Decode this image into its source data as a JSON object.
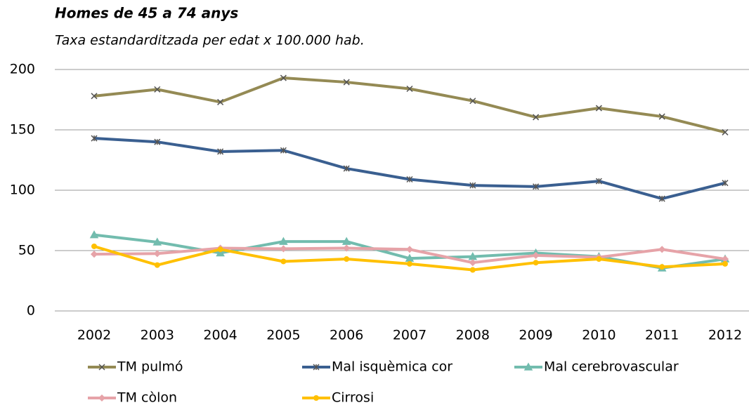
{
  "chart_data": {
    "type": "line",
    "title": "Homes de 45 a 74 anys",
    "subtitle": "Taxa estandarditzada per edat x 100.000 hab.",
    "categories": [
      "2002",
      "2003",
      "2004",
      "2005",
      "2006",
      "2007",
      "2008",
      "2009",
      "2010",
      "2011",
      "2012"
    ],
    "series": [
      {
        "name": "TM pulmó",
        "color": "#948a54",
        "marker": "x",
        "values": [
          178,
          183.5,
          173,
          193,
          189.5,
          184,
          174,
          160.5,
          168,
          161,
          148
        ]
      },
      {
        "name": "Mal isquèmica cor",
        "color": "#3a5f90",
        "marker": "star",
        "values": [
          143,
          140,
          132,
          133,
          118,
          109,
          104,
          103,
          107.5,
          93,
          106
        ]
      },
      {
        "name": "Mal cerebrovascular",
        "color": "#72bcae",
        "marker": "triangle",
        "values": [
          63,
          57,
          48,
          57.5,
          57.5,
          43.5,
          45,
          48,
          45,
          35.5,
          43
        ]
      },
      {
        "name": "TM còlon",
        "color": "#e6a3a8",
        "marker": "diamond",
        "values": [
          47,
          47.5,
          52,
          51.5,
          52,
          51,
          40,
          46,
          44.5,
          51,
          43
        ]
      },
      {
        "name": "Cirrosi",
        "color": "#ffc000",
        "marker": "circle",
        "values": [
          53.5,
          38,
          51,
          41,
          43,
          39,
          34,
          40,
          43,
          36.5,
          39
        ]
      }
    ],
    "ylim": [
      0,
      200
    ],
    "yticks": [
      0,
      50,
      100,
      150,
      200
    ],
    "grid": true
  }
}
